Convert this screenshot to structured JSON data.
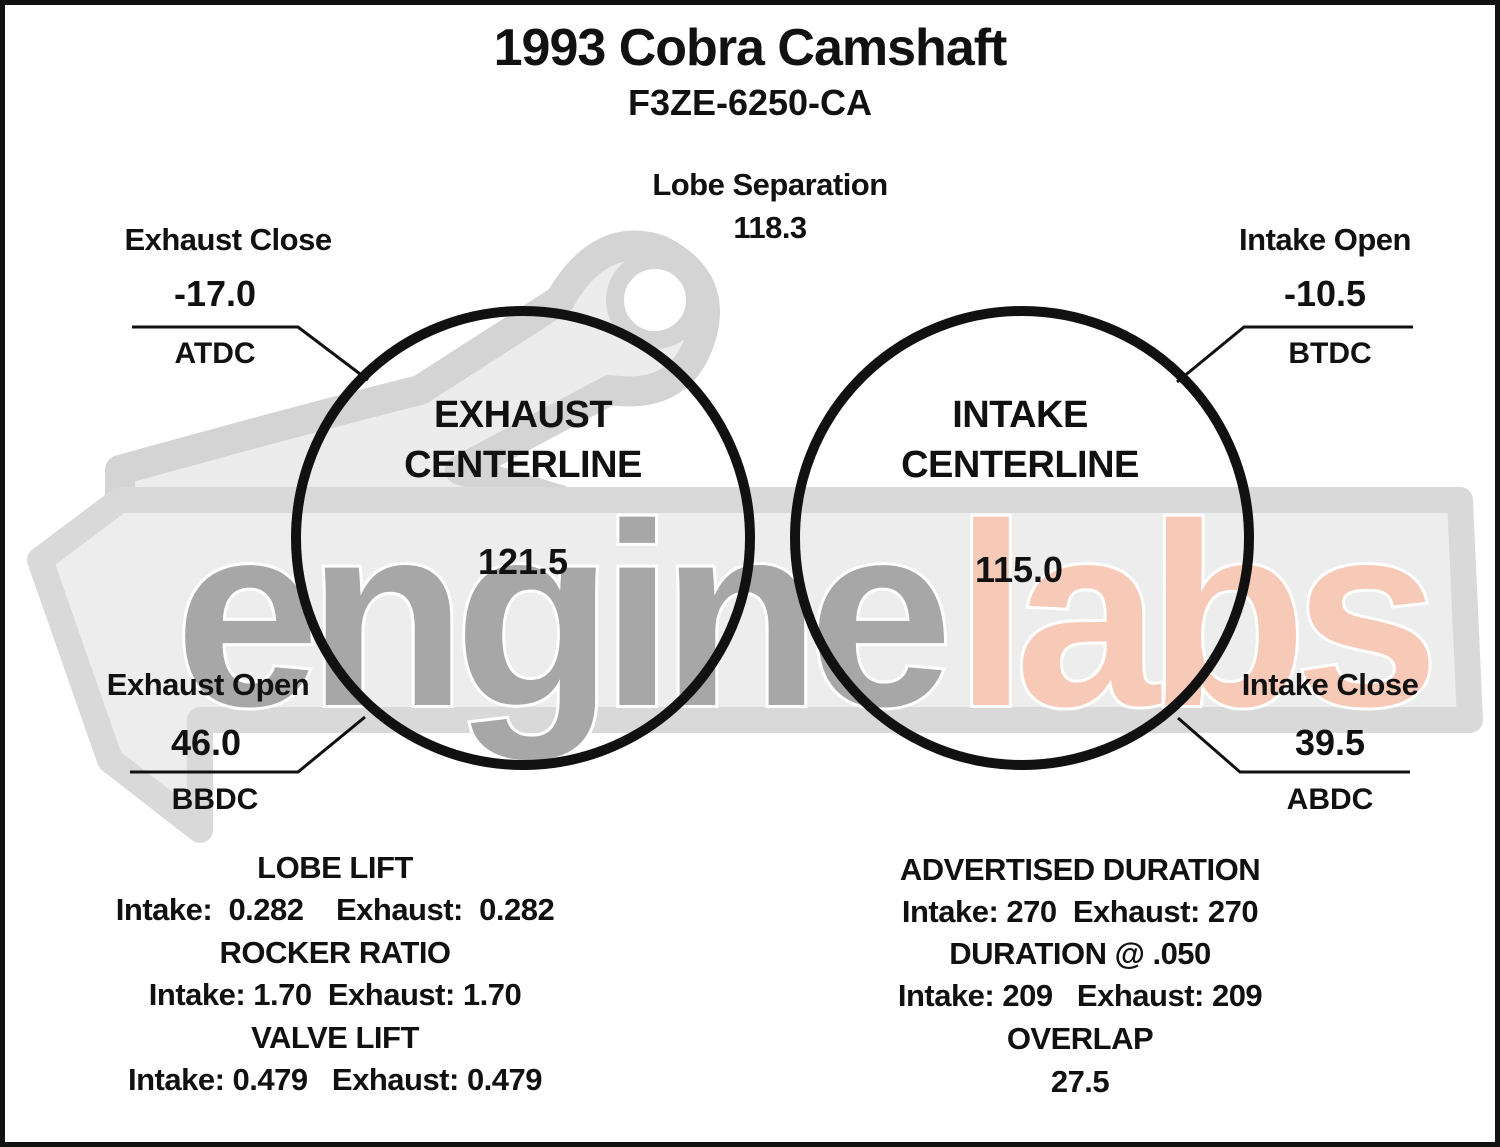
{
  "title": "1993 Cobra Camshaft",
  "part_number": "F3ZE-6250-CA",
  "watermark": {
    "brand_main": "engine",
    "brand_accent": "labs",
    "colors": {
      "main": "#a7a7a7",
      "outline": "#d9d9d9",
      "accent": "#f7c9b7"
    }
  },
  "lobe_separation": {
    "label": "Lobe Separation",
    "value": "118.3"
  },
  "exhaust_close": {
    "label": "Exhaust Close",
    "value": "-17.0",
    "reference": "ATDC"
  },
  "intake_open": {
    "label": "Intake Open",
    "value": "-10.5",
    "reference": "BTDC"
  },
  "exhaust_open": {
    "label": "Exhaust Open",
    "value": "46.0",
    "reference": "BBDC"
  },
  "intake_close": {
    "label": "Intake Close",
    "value": "39.5",
    "reference": "ABDC"
  },
  "exhaust_centerline": {
    "line1": "EXHAUST",
    "line2": "CENTERLINE",
    "value": "121.5"
  },
  "intake_centerline": {
    "line1": "INTAKE",
    "line2": "CENTERLINE",
    "value": "115.0"
  },
  "specs_left": {
    "lobe_lift": {
      "heading": "LOBE LIFT",
      "values": "Intake:  0.282    Exhaust:  0.282"
    },
    "rocker_ratio": {
      "heading": "ROCKER RATIO",
      "values": "Intake: 1.70  Exhaust: 1.70"
    },
    "valve_lift": {
      "heading": "VALVE LIFT",
      "values": "Intake: 0.479   Exhaust: 0.479"
    }
  },
  "specs_right": {
    "advertised_duration": {
      "heading": "ADVERTISED DURATION",
      "values": "Intake: 270  Exhaust: 270"
    },
    "duration_050": {
      "heading": "DURATION @ .050",
      "values": "Intake: 209   Exhaust: 209"
    },
    "overlap": {
      "heading": "OVERLAP",
      "values": "27.5"
    }
  }
}
